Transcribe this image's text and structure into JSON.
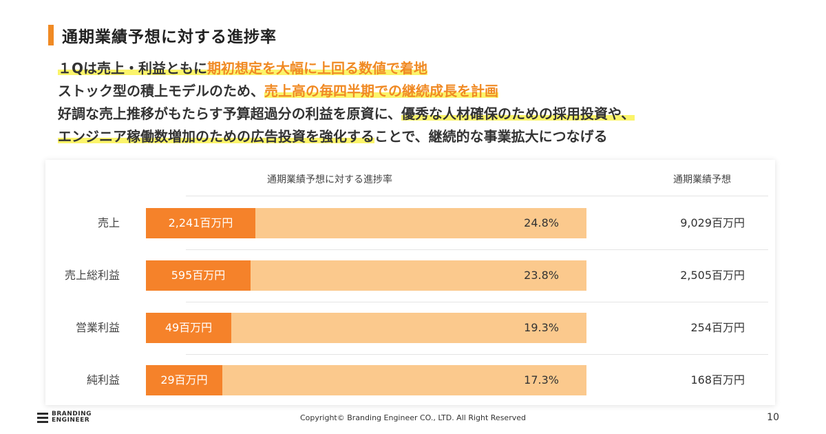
{
  "title": "通期業績予想に対する進捗率",
  "summary": {
    "line1": {
      "a": "１Qは売上・利益ともに",
      "b": "期初想定を大幅に上回る数値で着地"
    },
    "line2": {
      "a": "ストック型の積上モデルのため、",
      "b": "売上高の毎四半期での継続成長を計画"
    },
    "line3": {
      "a": "好調な売上推移がもたらす予算超過分の利益を原資に、",
      "b": "優秀な人材確保のための採用投資や、"
    },
    "line4": {
      "a": "エンジニア稼働数増加のための広告投資を強化する",
      "b": "ことで、継続的な事業拡大につなげる"
    }
  },
  "chart_data": {
    "type": "bar",
    "orientation": "horizontal",
    "stacked_progress": true,
    "header_chart": "通期業績予想に対する進捗率",
    "header_forecast": "通期業績予想",
    "categories": [
      "売上",
      "売上総利益",
      "営業利益",
      "純利益"
    ],
    "actual_labels": [
      "2,241百万円",
      "595百万円",
      "49百万円",
      "29百万円"
    ],
    "actual_values": [
      2241,
      595,
      49,
      29
    ],
    "progress_pct": [
      24.8,
      23.8,
      19.3,
      17.3
    ],
    "progress_labels": [
      "24.8%",
      "23.8%",
      "19.3%",
      "17.3%"
    ],
    "forecast_labels": [
      "9,029百万円",
      "2,505百万円",
      "254百万円",
      "168百万円"
    ],
    "forecast_values": [
      9029,
      2505,
      254,
      168
    ],
    "unit": "百万円",
    "colors": {
      "progress": "#f5822a",
      "remaining": "#fbc98d"
    }
  },
  "footer": {
    "logo_line1": "BRANDING",
    "logo_line2": "ENGINEER",
    "copyright": "Copyright© Branding Engineer CO., LTD. All Right Reserved",
    "page_number": "10"
  }
}
